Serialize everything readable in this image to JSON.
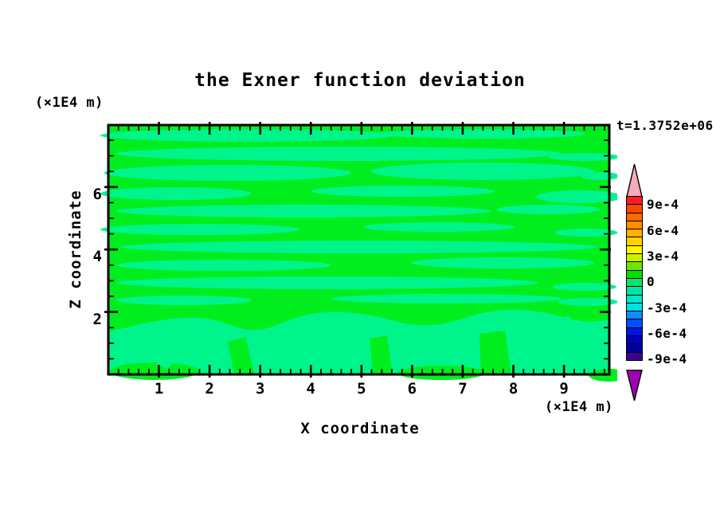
{
  "title": "the Exner function deviation",
  "time_label": "t=1.3752e+06",
  "axes": {
    "x": {
      "label": "X coordinate",
      "unit": "(×1E4 m)",
      "ticks": [
        "1",
        "2",
        "3",
        "4",
        "5",
        "6",
        "7",
        "8",
        "9"
      ],
      "tick_values": [
        1,
        2,
        3,
        4,
        5,
        6,
        7,
        8,
        9
      ]
    },
    "z": {
      "label": "Z coordinate",
      "unit": "(×1E4 m)",
      "ticks": [
        "2",
        "4",
        "6"
      ],
      "tick_values": [
        2,
        4,
        6
      ]
    }
  },
  "colorbar": {
    "labels": [
      "9e-4",
      "6e-4",
      "3e-4",
      "0",
      "-3e-4",
      "-6e-4",
      "-9e-4"
    ],
    "cell_colors": [
      "#fa1e1e",
      "#ff4600",
      "#ff6900",
      "#ff8c00",
      "#ffaf00",
      "#ffd200",
      "#fff500",
      "#c8f000",
      "#6ee600",
      "#00e100",
      "#00e66e",
      "#00e6a0",
      "#00e6c8",
      "#00e1e6",
      "#1488ff",
      "#0050ff",
      "#0014e6",
      "#0000be",
      "#000096",
      "#3c0096"
    ],
    "over_color": "#f7aab9",
    "under_color": "#a000b4"
  },
  "plot_colors": {
    "background_green": "#00ee1e",
    "feature_spring_green": "#00f48c",
    "frame_black": "#000000"
  },
  "chart_data": {
    "type": "heatmap",
    "subtype": "filled-contour",
    "title": "the Exner function deviation",
    "xlabel": "X coordinate (×1E4 m)",
    "ylabel": "Z coordinate (×1E4 m)",
    "time_annotation": "t=1.3752e+06",
    "x_range": [
      0,
      9.9
    ],
    "z_range": [
      0,
      8
    ],
    "x_ticks": [
      1,
      2,
      3,
      4,
      5,
      6,
      7,
      8,
      9
    ],
    "x_minor_tick_step": 0.2,
    "z_ticks": [
      2,
      4,
      6
    ],
    "z_minor_tick_step": 0.5,
    "grid": false,
    "legend_position": "right-colorbar",
    "levels": {
      "min": -0.001,
      "max": 0.001,
      "step": 0.0001,
      "labeled_levels": [
        0.0009,
        0.0006,
        0.0003,
        0,
        -0.0003,
        -0.0006,
        -0.0009
      ]
    },
    "field_summary": "Entire field lies within the two bands adjacent to zero: background band 0 to 1e-4 (green) with elongated horizontal streaks of the -1e-4 to 0 band (spring green) throughout the interior, and broad spring-green blobs along the bottom boundary below z≈2."
  }
}
